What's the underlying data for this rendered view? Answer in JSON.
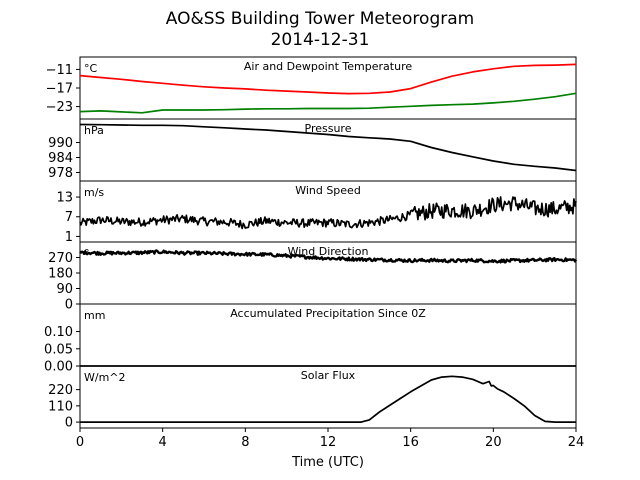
{
  "figure": {
    "title": "AO&SS Building Tower Meteorogram",
    "subtitle": "2014-12-31",
    "xlabel": "Time (UTC)"
  },
  "chart_data": [
    {
      "type": "line",
      "title": "Air and Dewpoint Temperature",
      "unit": "°C",
      "xlim": [
        0,
        24
      ],
      "ylim": [
        -27,
        -7
      ],
      "yticks": [
        -11,
        -17,
        -23
      ],
      "series": [
        {
          "color": "#ff0000",
          "x": [
            0,
            1,
            2,
            3,
            4,
            5,
            6,
            7,
            8,
            9,
            10,
            11,
            12,
            13,
            14,
            15,
            16,
            17,
            18,
            19,
            20,
            21,
            22,
            23,
            24
          ],
          "y": [
            -13,
            -13.6,
            -14.2,
            -14.9,
            -15.5,
            -16.1,
            -16.6,
            -17,
            -17.3,
            -17.7,
            -18,
            -18.3,
            -18.6,
            -18.8,
            -18.7,
            -18.3,
            -17.2,
            -15.1,
            -13.2,
            -11.8,
            -10.8,
            -10,
            -9.7,
            -9.6,
            -9.4
          ]
        },
        {
          "color": "#008000",
          "x": [
            0,
            1,
            2,
            3,
            4,
            5,
            6,
            7,
            8,
            9,
            10,
            11,
            12,
            13,
            14,
            15,
            16,
            17,
            18,
            19,
            20,
            21,
            22,
            23,
            24
          ],
          "y": [
            -24.6,
            -24.4,
            -24.7,
            -25,
            -24.1,
            -24.1,
            -24.1,
            -24,
            -23.8,
            -23.7,
            -23.7,
            -23.6,
            -23.6,
            -23.6,
            -23.5,
            -23.2,
            -22.9,
            -22.6,
            -22.4,
            -22.2,
            -21.8,
            -21.3,
            -20.6,
            -19.8,
            -18.7
          ]
        }
      ]
    },
    {
      "type": "line",
      "title": "Pressure",
      "unit": "hPa",
      "xlim": [
        0,
        24
      ],
      "ylim": [
        974.6,
        999.4
      ],
      "yticks": [
        990,
        984,
        978
      ],
      "series": [
        {
          "color": "#000000",
          "x": [
            0,
            1,
            2,
            3,
            4,
            5,
            6,
            7,
            8,
            9,
            10,
            11,
            12,
            13,
            14,
            15,
            16,
            17,
            18,
            19,
            20,
            21,
            22,
            23,
            24
          ],
          "y": [
            997.2,
            997.1,
            997,
            996.9,
            996.9,
            996.7,
            996.3,
            995.9,
            995.4,
            995,
            994.4,
            993.8,
            993.2,
            992.4,
            991.9,
            991.4,
            990.5,
            988,
            986,
            984.3,
            982.6,
            981.3,
            980.5,
            979.8,
            978.8
          ]
        }
      ]
    },
    {
      "type": "line",
      "title": "Wind Speed",
      "unit": "m/s",
      "xlim": [
        0,
        24
      ],
      "ylim": [
        -0.7,
        17.9
      ],
      "yticks": [
        13,
        7,
        1
      ],
      "series": [
        {
          "color": "#000000",
          "x": [
            0,
            1,
            2,
            3,
            4,
            5,
            6,
            7,
            8,
            9,
            10,
            11,
            12,
            13,
            14,
            15,
            16,
            17,
            18,
            19,
            20,
            21,
            22,
            23,
            24
          ],
          "y": [
            5,
            6,
            5.5,
            5.4,
            6,
            6.4,
            5.6,
            5.4,
            4.6,
            5.7,
            5.2,
            5,
            5.2,
            4.7,
            5.2,
            6.1,
            7.5,
            8.7,
            9,
            8.8,
            10.6,
            11.2,
            9.5,
            9.3,
            10.3
          ]
        }
      ]
    },
    {
      "type": "line",
      "title": "Wind Direction",
      "unit": "°",
      "xlim": [
        0,
        24
      ],
      "ylim": [
        0,
        360
      ],
      "yticks": [
        270,
        180,
        90,
        0
      ],
      "series": [
        {
          "color": "#000000",
          "x": [
            0,
            1,
            2,
            3,
            4,
            5,
            6,
            7,
            8,
            9,
            10,
            11,
            12,
            13,
            14,
            15,
            16,
            17,
            18,
            19,
            20,
            21,
            22,
            23,
            24
          ],
          "y": [
            300,
            295,
            296,
            298,
            303,
            296,
            295,
            292,
            289,
            287,
            280,
            273,
            265,
            262,
            258,
            256,
            252,
            254,
            250,
            254,
            249,
            252,
            254,
            258,
            255
          ]
        }
      ]
    },
    {
      "type": "line",
      "title": "Accumulated Precipitation Since 0Z",
      "unit": "mm",
      "xlim": [
        0,
        24
      ],
      "ylim": [
        0,
        0.18
      ],
      "yticks": [
        0.1,
        0.05,
        0.0
      ],
      "series": [
        {
          "color": "#000000",
          "x": [
            0,
            24
          ],
          "y": [
            0,
            0
          ]
        }
      ]
    },
    {
      "type": "line",
      "title": "Solar Flux",
      "unit": "W/m^2",
      "xlim": [
        0,
        24
      ],
      "ylim": [
        -40,
        380
      ],
      "yticks": [
        220,
        110,
        0
      ],
      "series": [
        {
          "color": "#000000",
          "x": [
            0,
            13.6,
            14,
            14.5,
            15,
            15.5,
            16,
            16.5,
            17,
            17.5,
            18,
            18.5,
            19,
            19.5,
            19.8,
            19.9,
            20,
            20.2,
            20.5,
            21,
            21.5,
            22,
            22.5,
            23,
            24
          ],
          "y": [
            0,
            0,
            15,
            70,
            115,
            160,
            205,
            245,
            285,
            305,
            310,
            305,
            290,
            260,
            275,
            245,
            248,
            225,
            205,
            160,
            110,
            45,
            5,
            0,
            0
          ]
        }
      ]
    }
  ]
}
